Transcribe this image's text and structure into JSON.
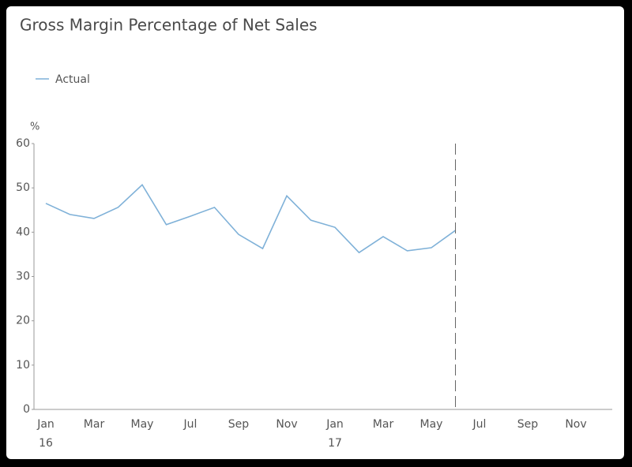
{
  "chart_data": {
    "type": "line",
    "title": "Gross Margin Percentage of Net Sales",
    "y_unit": "%",
    "categories": [
      "Jan",
      null,
      "Mar",
      null,
      "May",
      null,
      "Jul",
      null,
      "Sep",
      null,
      "Nov",
      null,
      "Jan",
      null,
      "Mar",
      null,
      "May",
      null,
      "Jul",
      null,
      "Sep",
      null,
      "Nov",
      null
    ],
    "year_labels": [
      "16",
      null,
      null,
      null,
      null,
      null,
      null,
      null,
      null,
      null,
      null,
      null,
      "17",
      null,
      null,
      null,
      null,
      null,
      null,
      null,
      null,
      null,
      null,
      null
    ],
    "series": [
      {
        "name": "Actual",
        "color": "#7fb1d8",
        "values": [
          46.5,
          44.0,
          43.1,
          45.6,
          50.7,
          41.7,
          43.6,
          45.6,
          39.5,
          36.3,
          48.2,
          42.7,
          41.1,
          35.4,
          39.0,
          35.8,
          36.5,
          40.4,
          null,
          null,
          null,
          null,
          null,
          null
        ]
      }
    ],
    "ylim": [
      0,
      60
    ],
    "yticks": [
      0,
      10,
      20,
      30,
      40,
      50,
      60
    ],
    "grid": false,
    "legend": "top-left"
  }
}
